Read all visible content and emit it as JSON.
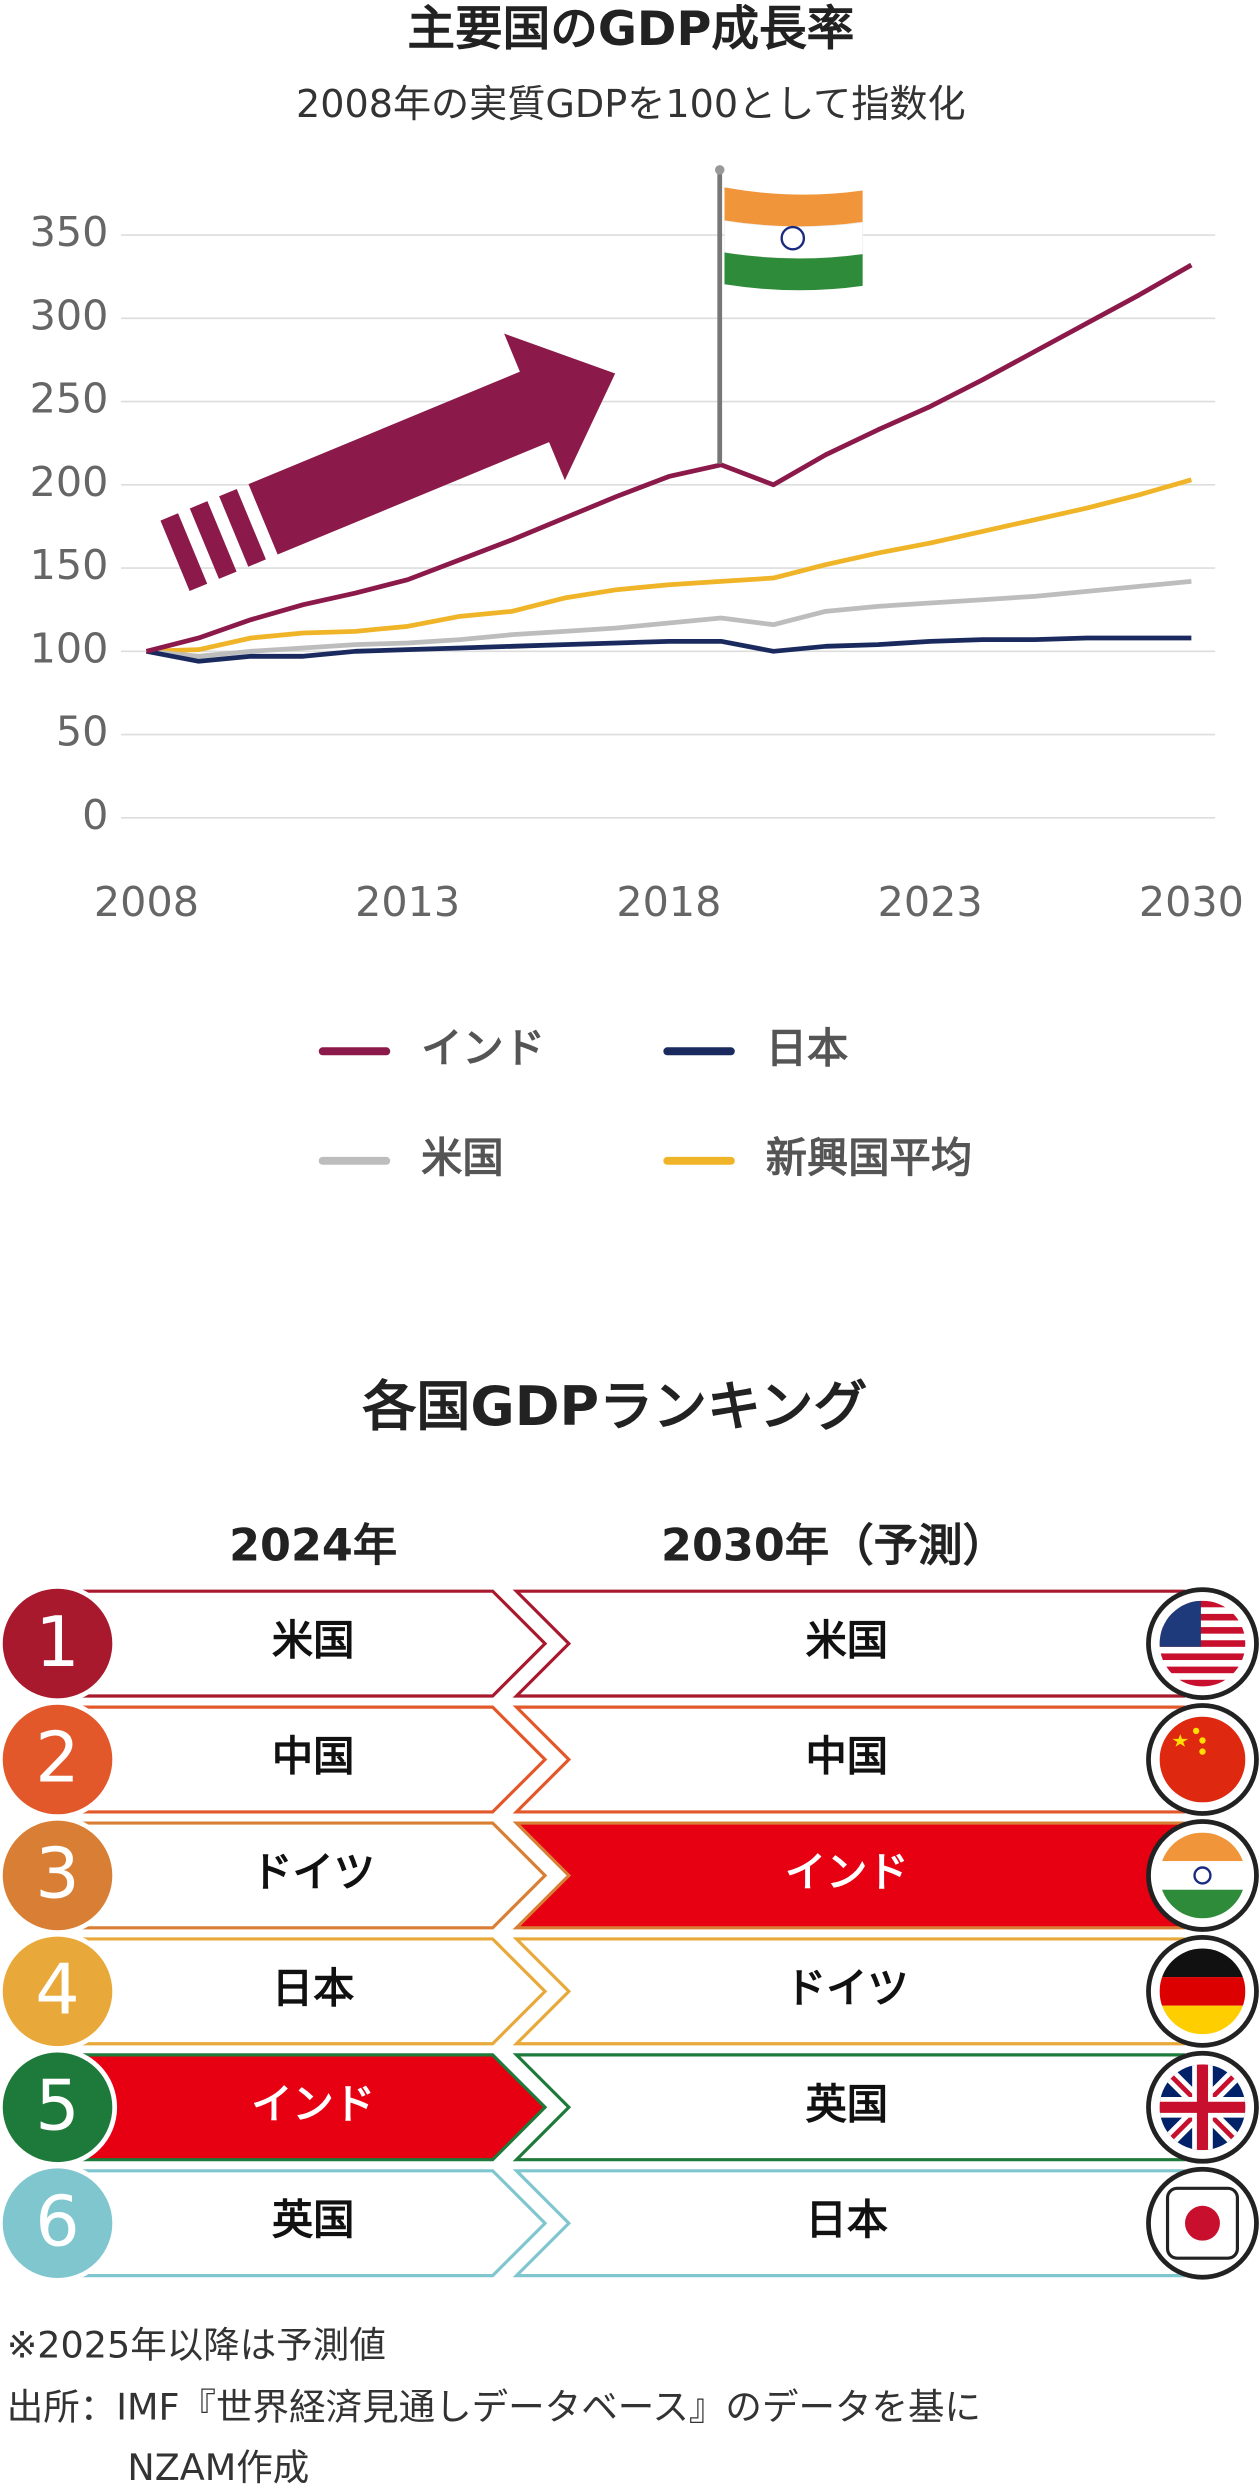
{
  "chart_data": {
    "type": "line",
    "title": "主要国のGDP成長率",
    "subtitle": "2008年の実質GDPを100として指数化",
    "categories": [
      "2008",
      null,
      null,
      null,
      null,
      "2013",
      null,
      null,
      null,
      null,
      "2018",
      null,
      null,
      null,
      null,
      "2023",
      null,
      null,
      null,
      null,
      "2030"
    ],
    "series": [
      {
        "name": "インド",
        "color": "#8b1a4a",
        "values": [
          100,
          108,
          119,
          128,
          135,
          143,
          155,
          167,
          180,
          193,
          205,
          212,
          200,
          218,
          233,
          247,
          263,
          280,
          297,
          314,
          332
        ]
      },
      {
        "name": "日本",
        "color": "#1a2a5e",
        "values": [
          100,
          94,
          97,
          97,
          100,
          101,
          102,
          103,
          104,
          105,
          106,
          106,
          100,
          103,
          104,
          106,
          107,
          107,
          108,
          108,
          108
        ]
      },
      {
        "name": "米国",
        "color": "#bdbdbd",
        "values": [
          100,
          97,
          100,
          102,
          104,
          105,
          107,
          110,
          112,
          114,
          117,
          120,
          116,
          124,
          127,
          129,
          131,
          133,
          136,
          139,
          142
        ]
      },
      {
        "name": "新興国平均",
        "color": "#f0b429",
        "values": [
          100,
          101,
          108,
          111,
          112,
          115,
          121,
          124,
          132,
          137,
          140,
          142,
          144,
          152,
          159,
          165,
          172,
          179,
          186,
          194,
          203
        ]
      }
    ],
    "ylim": [
      0,
      350
    ],
    "yticks": [
      0,
      50,
      100,
      150,
      200,
      250,
      300,
      350
    ],
    "grid": true
  },
  "ranking": {
    "title": "各国GDPランキング",
    "headers": [
      "2024年",
      "2030年（予測）"
    ],
    "rows": [
      {
        "rank": 1,
        "left": "米国",
        "right": "米国"
      },
      {
        "rank": 2,
        "left": "中国",
        "right": "中国"
      },
      {
        "rank": 3,
        "left": "ドイツ",
        "right": "インド"
      },
      {
        "rank": 4,
        "left": "日本",
        "right": "ドイツ"
      },
      {
        "rank": 5,
        "left": "インド",
        "right": "英国"
      },
      {
        "rank": 6,
        "left": "英国",
        "right": "日本"
      }
    ]
  },
  "notes": [
    "※2025年以降は予測値",
    "出所：IMF『世界経済見通しデータベース』のデータを基に",
    "NZAM作成"
  ]
}
